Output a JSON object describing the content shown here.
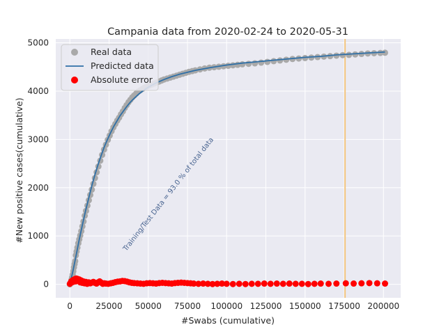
{
  "chart_data": {
    "type": "scatter",
    "title": "Campania data  from 2020-02-24 to 2020-05-31",
    "xlabel": "#Swabs (cumulative)",
    "ylabel": "#New positive cases(cumulative)",
    "xlim": [
      -9000,
      211000
    ],
    "ylim": [
      -280,
      5080
    ],
    "xticks": [
      0,
      25000,
      50000,
      75000,
      100000,
      125000,
      150000,
      175000,
      200000
    ],
    "yticks": [
      0,
      1000,
      2000,
      3000,
      4000,
      5000
    ],
    "grid": true,
    "legend_position": "top-left",
    "annotation": {
      "text": "Training/Test Data = 93.0 % of total data",
      "x": 36000,
      "y": 680,
      "rotation_deg": 52
    },
    "vertical_line": {
      "x": 175500,
      "color": "#f2c47f"
    },
    "series": [
      {
        "name": "Real data",
        "kind": "scatter",
        "color": "#a9a9a9",
        "points": [
          [
            0,
            0
          ],
          [
            600,
            40
          ],
          [
            1000,
            90
          ],
          [
            1400,
            140
          ],
          [
            1800,
            200
          ],
          [
            2200,
            270
          ],
          [
            2600,
            350
          ],
          [
            3000,
            420
          ],
          [
            3400,
            480
          ],
          [
            3800,
            600
          ],
          [
            4300,
            680
          ],
          [
            4800,
            760
          ],
          [
            5400,
            850
          ],
          [
            6000,
            930
          ],
          [
            6600,
            1010
          ],
          [
            7300,
            1100
          ],
          [
            8000,
            1200
          ],
          [
            8700,
            1300
          ],
          [
            9500,
            1420
          ],
          [
            10300,
            1520
          ],
          [
            11200,
            1630
          ],
          [
            12100,
            1740
          ],
          [
            13000,
            1850
          ],
          [
            14000,
            1960
          ],
          [
            15000,
            2080
          ],
          [
            16000,
            2200
          ],
          [
            17100,
            2320
          ],
          [
            18200,
            2440
          ],
          [
            19400,
            2560
          ],
          [
            20600,
            2680
          ],
          [
            21800,
            2790
          ],
          [
            23000,
            2890
          ],
          [
            24200,
            2990
          ],
          [
            25400,
            3080
          ],
          [
            26600,
            3170
          ],
          [
            27800,
            3250
          ],
          [
            29000,
            3320
          ],
          [
            30200,
            3390
          ],
          [
            31400,
            3450
          ],
          [
            32600,
            3520
          ],
          [
            33800,
            3580
          ],
          [
            35000,
            3650
          ],
          [
            36200,
            3710
          ],
          [
            37400,
            3770
          ],
          [
            38600,
            3820
          ],
          [
            39800,
            3870
          ],
          [
            41000,
            3910
          ],
          [
            42300,
            3950
          ],
          [
            43600,
            3990
          ],
          [
            45000,
            4020
          ],
          [
            46500,
            4050
          ],
          [
            48000,
            4080
          ],
          [
            49500,
            4100
          ],
          [
            51000,
            4120
          ],
          [
            52500,
            4140
          ],
          [
            54000,
            4160
          ],
          [
            55500,
            4180
          ],
          [
            57000,
            4200
          ],
          [
            58500,
            4220
          ],
          [
            60000,
            4240
          ],
          [
            62000,
            4260
          ],
          [
            64000,
            4280
          ],
          [
            66000,
            4300
          ],
          [
            68000,
            4320
          ],
          [
            70000,
            4340
          ],
          [
            72000,
            4360
          ],
          [
            74000,
            4380
          ],
          [
            76000,
            4400
          ],
          [
            78000,
            4415
          ],
          [
            80000,
            4430
          ],
          [
            83000,
            4450
          ],
          [
            86000,
            4470
          ],
          [
            89000,
            4485
          ],
          [
            92000,
            4495
          ],
          [
            95000,
            4505
          ],
          [
            98000,
            4515
          ],
          [
            101000,
            4525
          ],
          [
            104000,
            4535
          ],
          [
            107000,
            4545
          ],
          [
            110000,
            4555
          ],
          [
            114000,
            4565
          ],
          [
            118000,
            4575
          ],
          [
            122000,
            4590
          ],
          [
            126000,
            4605
          ],
          [
            130000,
            4620
          ],
          [
            134000,
            4635
          ],
          [
            138000,
            4650
          ],
          [
            142000,
            4665
          ],
          [
            146000,
            4675
          ],
          [
            150000,
            4685
          ],
          [
            154000,
            4695
          ],
          [
            158000,
            4705
          ],
          [
            162000,
            4715
          ],
          [
            166000,
            4725
          ],
          [
            170000,
            4735
          ],
          [
            174000,
            4745
          ],
          [
            178000,
            4750
          ],
          [
            182000,
            4760
          ],
          [
            186000,
            4770
          ],
          [
            190000,
            4780
          ],
          [
            194000,
            4785
          ],
          [
            198000,
            4790
          ],
          [
            201000,
            4795
          ]
        ]
      },
      {
        "name": "Predicted data",
        "kind": "line",
        "color": "#2f6fa6",
        "points": [
          [
            0,
            0
          ],
          [
            2000,
            280
          ],
          [
            4000,
            600
          ],
          [
            6000,
            930
          ],
          [
            8000,
            1230
          ],
          [
            10000,
            1520
          ],
          [
            12000,
            1780
          ],
          [
            14000,
            2040
          ],
          [
            16000,
            2270
          ],
          [
            18000,
            2480
          ],
          [
            20000,
            2670
          ],
          [
            22000,
            2850
          ],
          [
            24000,
            3000
          ],
          [
            26000,
            3140
          ],
          [
            28000,
            3270
          ],
          [
            30000,
            3380
          ],
          [
            32000,
            3490
          ],
          [
            34000,
            3580
          ],
          [
            36000,
            3670
          ],
          [
            38000,
            3750
          ],
          [
            40000,
            3820
          ],
          [
            42000,
            3880
          ],
          [
            44000,
            3940
          ],
          [
            46000,
            3990
          ],
          [
            48000,
            4040
          ],
          [
            50000,
            4080
          ],
          [
            55000,
            4170
          ],
          [
            60000,
            4240
          ],
          [
            65000,
            4300
          ],
          [
            70000,
            4350
          ],
          [
            75000,
            4390
          ],
          [
            80000,
            4430
          ],
          [
            90000,
            4490
          ],
          [
            100000,
            4540
          ],
          [
            110000,
            4580
          ],
          [
            120000,
            4610
          ],
          [
            130000,
            4640
          ],
          [
            140000,
            4670
          ],
          [
            150000,
            4700
          ],
          [
            160000,
            4720
          ],
          [
            170000,
            4750
          ],
          [
            180000,
            4770
          ],
          [
            190000,
            4790
          ],
          [
            201000,
            4810
          ]
        ]
      },
      {
        "name": "Absolute error",
        "kind": "scatter",
        "color": "#ff0000",
        "points": [
          [
            0,
            10
          ],
          [
            500,
            30
          ],
          [
            900,
            60
          ],
          [
            1300,
            40
          ],
          [
            1700,
            80
          ],
          [
            2100,
            50
          ],
          [
            2500,
            95
          ],
          [
            2900,
            70
          ],
          [
            3300,
            110
          ],
          [
            3700,
            60
          ],
          [
            4100,
            120
          ],
          [
            4500,
            90
          ],
          [
            5000,
            110
          ],
          [
            5500,
            70
          ],
          [
            6000,
            100
          ],
          [
            6600,
            40
          ],
          [
            7200,
            80
          ],
          [
            7900,
            30
          ],
          [
            8600,
            60
          ],
          [
            9400,
            20
          ],
          [
            10200,
            50
          ],
          [
            11000,
            10
          ],
          [
            12000,
            40
          ],
          [
            13000,
            20
          ],
          [
            14000,
            35
          ],
          [
            15000,
            50
          ],
          [
            16000,
            30
          ],
          [
            17000,
            15
          ],
          [
            18000,
            40
          ],
          [
            19000,
            60
          ],
          [
            20000,
            35
          ],
          [
            21000,
            10
          ],
          [
            22000,
            20
          ],
          [
            23000,
            15
          ],
          [
            24500,
            10
          ],
          [
            26000,
            20
          ],
          [
            27500,
            30
          ],
          [
            29000,
            45
          ],
          [
            30500,
            55
          ],
          [
            32000,
            60
          ],
          [
            33500,
            70
          ],
          [
            35000,
            65
          ],
          [
            36500,
            55
          ],
          [
            38000,
            40
          ],
          [
            39500,
            30
          ],
          [
            41000,
            25
          ],
          [
            43000,
            20
          ],
          [
            45000,
            15
          ],
          [
            47000,
            10
          ],
          [
            49000,
            20
          ],
          [
            51000,
            25
          ],
          [
            53000,
            20
          ],
          [
            55000,
            15
          ],
          [
            57000,
            25
          ],
          [
            59000,
            30
          ],
          [
            61000,
            25
          ],
          [
            63000,
            20
          ],
          [
            65000,
            15
          ],
          [
            67000,
            25
          ],
          [
            69000,
            30
          ],
          [
            71000,
            35
          ],
          [
            73000,
            30
          ],
          [
            75000,
            25
          ],
          [
            77000,
            20
          ],
          [
            79000,
            15
          ],
          [
            82000,
            10
          ],
          [
            85000,
            15
          ],
          [
            88000,
            10
          ],
          [
            91000,
            5
          ],
          [
            94000,
            10
          ],
          [
            97000,
            15
          ],
          [
            100000,
            10
          ],
          [
            104000,
            5
          ],
          [
            108000,
            10
          ],
          [
            112000,
            5
          ],
          [
            116000,
            10
          ],
          [
            120000,
            10
          ],
          [
            124000,
            15
          ],
          [
            128000,
            10
          ],
          [
            132000,
            15
          ],
          [
            136000,
            10
          ],
          [
            140000,
            15
          ],
          [
            144000,
            10
          ],
          [
            148000,
            10
          ],
          [
            152000,
            5
          ],
          [
            156000,
            10
          ],
          [
            160000,
            15
          ],
          [
            165000,
            10
          ],
          [
            170000,
            15
          ],
          [
            176000,
            20
          ],
          [
            181000,
            15
          ],
          [
            186000,
            20
          ],
          [
            191000,
            25
          ],
          [
            196000,
            20
          ],
          [
            201000,
            15
          ]
        ]
      }
    ]
  }
}
